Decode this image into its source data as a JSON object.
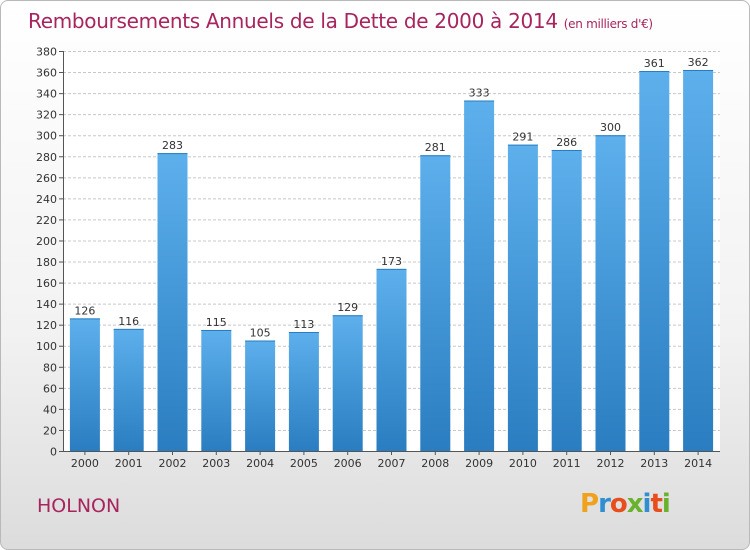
{
  "chart_data": {
    "type": "bar",
    "title": "Remboursements Annuels de la Dette de 2000 à 2014",
    "subtitle": "(en milliers d'€)",
    "categories": [
      "2000",
      "2001",
      "2002",
      "2003",
      "2004",
      "2005",
      "2006",
      "2007",
      "2008",
      "2009",
      "2010",
      "2011",
      "2012",
      "2013",
      "2014"
    ],
    "values": [
      126,
      116,
      283,
      115,
      105,
      113,
      129,
      173,
      281,
      333,
      291,
      286,
      300,
      361,
      362
    ],
    "ylim": [
      0,
      380
    ],
    "ytick_step": 20,
    "xlabel": "",
    "ylabel": "",
    "grid": true
  },
  "commune": "HOLNON",
  "logo": {
    "letters": [
      "P",
      "r",
      "o",
      "x",
      "i",
      "t",
      "i"
    ],
    "colors": [
      "#f0a21c",
      "#2f8fd1",
      "#e84e1b",
      "#69b22d",
      "#2f8fd1",
      "#e84e1b",
      "#69b22d"
    ]
  },
  "colors": {
    "accent": "#a8245e",
    "bar_light": "#5db0ec",
    "bar_dark": "#2a7dc0"
  }
}
